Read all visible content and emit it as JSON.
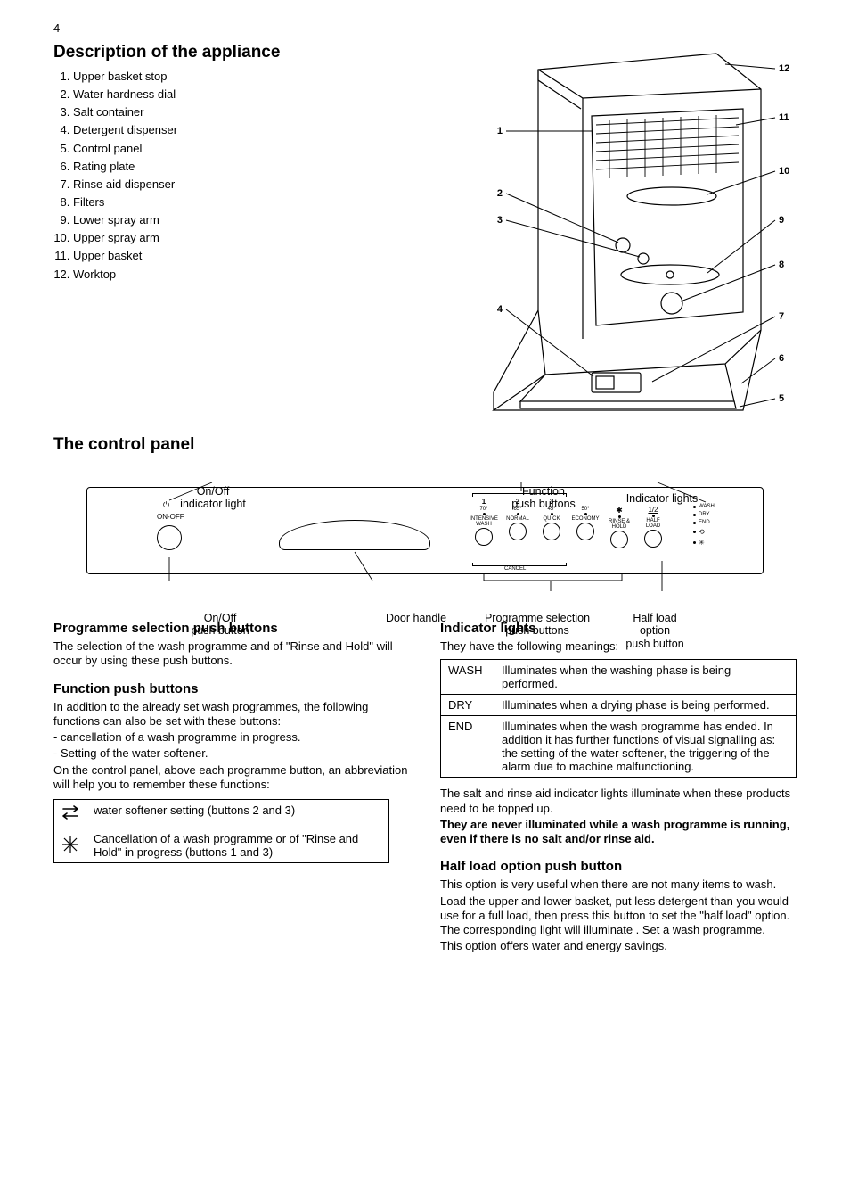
{
  "page_number": "4",
  "section_title": "Description of the appliance",
  "parts_list": [
    "Upper basket stop",
    "Water hardness dial",
    "Salt container",
    "Detergent dispenser",
    "Control panel",
    "Rating plate",
    "Rinse aid dispenser",
    "Filters",
    "Lower spray arm",
    "Upper spray arm",
    "Upper basket",
    "Worktop"
  ],
  "figure_side_labels": [
    "1",
    "2",
    "3",
    "4",
    "5",
    "6",
    "7",
    "8",
    "9",
    "10",
    "11",
    "12"
  ],
  "control_panel": {
    "title": "The control panel",
    "labels": {
      "onoff_led": "On/Off\nindicator light",
      "onoff_btn": "On/Off\npush button",
      "door_handle": "Door handle",
      "function_btns": "Function\npush buttons",
      "indicator_lights": "Indicator lights",
      "prog_sel": "Programme selection\npush buttons",
      "half_load": "Half load\noption\npush button"
    },
    "onoff_text": "ON-OFF",
    "prog_numbers": [
      "1",
      "2",
      "3"
    ],
    "prog_temps": [
      "70°",
      "65°",
      "45°",
      "50°"
    ],
    "prog_names": [
      "INTENSIVE\nWASH",
      "NORMAL",
      "QUICK",
      "ECONOMY"
    ],
    "extra_names": [
      "RINSE &\nHOLD",
      "HALF\nLOAD"
    ],
    "cancel_label": "CANCEL",
    "indicator_light_labels": [
      "WASH",
      "DRY",
      "END"
    ],
    "indicator_special_labels": [
      ""
    ]
  },
  "column_left": {
    "prog_heading": "Programme selection push buttons",
    "prog_para": "The selection of the wash programme and of \"Rinse and Hold\" will occur by using these push buttons.",
    "func_heading": "Function push buttons",
    "func_para1": "In addition to the already set wash programmes, the following functions can also be set with these buttons:",
    "func_bullets": [
      "cancellation of a wash programme in progress.",
      "Setting of the water softener."
    ],
    "func_para2": "On the control panel, above each programme button, an abbreviation will help you to remember these functions:",
    "abbr_table": [
      {
        "icon": "softener",
        "text": "water softener setting (buttons 2 and 3)"
      },
      {
        "icon": "cancel",
        "text": "Cancellation of a wash programme or of \"Rinse and Hold\" in progress (buttons 1 and 3)"
      }
    ]
  },
  "column_right": {
    "ind_heading": "Indicator lights",
    "ind_intro": "They have the following meanings:",
    "phase_table": [
      {
        "k": "WASH",
        "d": "Illuminates when the washing phase is being performed."
      },
      {
        "k": "DRY",
        "d": "Illuminates when a drying phase is being performed."
      },
      {
        "k": "END",
        "d": "Illuminates when the wash programme has ended. In addition it has further functions of visual signalling as: the setting of the water softener, the triggering of the alarm due to machine malfunctioning."
      }
    ],
    "salt_rinse_para": "The salt and rinse aid indicator lights illuminate when these products need to be topped up.",
    "salt_rinse_note": "They are never illuminated while a wash programme is running, even if there is no salt and/or rinse aid.",
    "half_heading": "Half load option push button",
    "half_para1": "This option is very useful when there are not many items to wash.",
    "half_para2": "Load the upper and lower basket, put less detergent than you would use for a full load, then press this button to set the \"half load\" option. The corresponding light will illuminate . Set a wash programme.",
    "half_para3": "This option offers water and energy savings."
  },
  "colors": {
    "text": "#000000",
    "bg": "#ffffff",
    "line": "#000000"
  }
}
